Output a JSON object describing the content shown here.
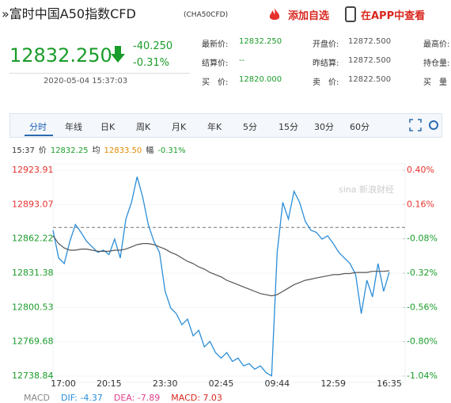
{
  "header": {
    "title": "»富时中国A50指数CFD",
    "code": "(CHA50CFD)",
    "add_watch": "添加自选",
    "open_app": "在APP中查看"
  },
  "price": {
    "last": "12832.250",
    "change": "-40.250",
    "change_pct": "-0.31%",
    "time": "2020-05-04 15:37:03"
  },
  "quote": [
    [
      {
        "label": "最新价:",
        "value": "12832.250"
      },
      {
        "label": "开盘价:",
        "value": "12872.500"
      },
      {
        "label": "最高价:"
      }
    ],
    [
      {
        "label": "结算价:",
        "value": "--"
      },
      {
        "label": "昨结算:",
        "value": "12872.500"
      },
      {
        "label": "持仓量:"
      }
    ],
    [
      {
        "label": "买　价:",
        "value": "12820.000"
      },
      {
        "label": "卖　价:",
        "value": "12822.500"
      },
      {
        "label": "买　量"
      }
    ]
  ],
  "tabs": [
    "分时",
    "年线",
    "日K",
    "周K",
    "月K",
    "年K",
    "5分",
    "15分",
    "30分",
    "60分"
  ],
  "info": {
    "time": "15:37",
    "price_label": "价",
    "price": "12832.25",
    "avg_label": "均",
    "avg": "12833.50",
    "pct_label": "幅",
    "pct": "-0.31%"
  },
  "watermark": "sina 新浪财经",
  "macd": {
    "title": "MACD",
    "dif": "DIF: -4.37",
    "dea": "DEA: -7.89",
    "macd": "MACD: 7.03"
  },
  "chart_data": {
    "type": "line",
    "categories": [
      "17:00",
      null,
      null,
      null,
      null,
      null,
      null,
      null,
      null,
      null,
      "20:15",
      null,
      null,
      null,
      null,
      null,
      null,
      null,
      null,
      null,
      "23:30",
      null,
      null,
      null,
      null,
      null,
      null,
      null,
      null,
      null,
      "02:45",
      null,
      null,
      null,
      null,
      null,
      null,
      null,
      null,
      null,
      "09:44",
      null,
      null,
      null,
      null,
      null,
      null,
      null,
      null,
      null,
      "12:59",
      null,
      null,
      null,
      null,
      null,
      null,
      null,
      null,
      null,
      "16:35"
    ],
    "series": [
      {
        "name": "价",
        "color": "#2b8ed8",
        "values": [
          12870,
          12845,
          12840,
          12860,
          12875,
          12868,
          12860,
          12855,
          12850,
          12852,
          12848,
          12862,
          12845,
          12880,
          12895,
          12918,
          12900,
          12875,
          12860,
          12850,
          12815,
          12800,
          12795,
          12785,
          12790,
          12775,
          12780,
          12765,
          12770,
          12760,
          12755,
          12760,
          12752,
          12755,
          12748,
          12750,
          12745,
          12748,
          12742,
          12739,
          12850,
          12895,
          12880,
          12905,
          12895,
          12878,
          12870,
          12868,
          12862,
          12865,
          12858,
          12850,
          12845,
          12840,
          12830,
          12795,
          12825,
          12810,
          12840,
          12815,
          12832.25
        ]
      },
      {
        "name": "均",
        "color": "#555555",
        "values": [
          12865,
          12858,
          12854,
          12852,
          12852,
          12853,
          12853,
          12852,
          12851,
          12851,
          12851,
          12852,
          12852,
          12853,
          12855,
          12857,
          12858,
          12858,
          12857,
          12855,
          12853,
          12850,
          12848,
          12845,
          12842,
          12840,
          12837,
          12835,
          12832,
          12830,
          12828,
          12825,
          12823,
          12821,
          12819,
          12817,
          12815,
          12813,
          12812,
          12811,
          12812,
          12815,
          12818,
          12821,
          12823,
          12825,
          12826,
          12827,
          12828,
          12829,
          12830,
          12830,
          12831,
          12831,
          12832,
          12832,
          12832,
          12833,
          12833,
          12833,
          12833.5
        ]
      }
    ],
    "baseline": 12872.5,
    "ylim": [
      12738.84,
      12923.91
    ],
    "yticks": [
      12923.91,
      12893.07,
      12862.22,
      12831.38,
      12800.53,
      12769.68,
      12738.84
    ],
    "y2lim": [
      -1.04,
      0.4
    ],
    "y2ticks": [
      {
        "value": 0.4,
        "label": "0.40%"
      },
      {
        "value": 0.16,
        "label": "0.16%"
      },
      {
        "value": -0.08,
        "label": "-0.08%"
      },
      {
        "value": -0.32,
        "label": "-0.32%"
      },
      {
        "value": -0.56,
        "label": "-0.56%"
      },
      {
        "value": -0.8,
        "label": "-0.80%"
      },
      {
        "value": -1.04,
        "label": "-1.04%"
      }
    ],
    "up_color": "#e5322d",
    "down_color": "#1a9c2a"
  }
}
